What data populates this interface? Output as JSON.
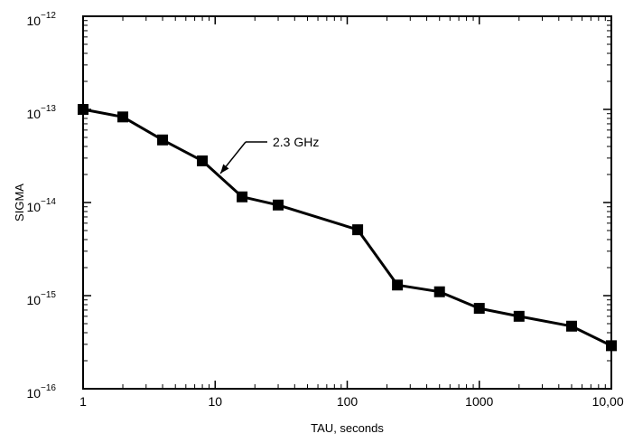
{
  "chart_data": {
    "type": "line",
    "title": "",
    "xlabel": "TAU, seconds",
    "ylabel": "SIGMA",
    "x_scale": "log",
    "y_scale": "log",
    "xlim": [
      1,
      10000
    ],
    "ylim": [
      1e-16,
      1e-12
    ],
    "x_tick_labels": [
      "1",
      "10",
      "100",
      "1000",
      "10,000"
    ],
    "y_tick_labels": [
      {
        "base": "10",
        "exp": "−12"
      },
      {
        "base": "10",
        "exp": "−13"
      },
      {
        "base": "10",
        "exp": "−14"
      },
      {
        "base": "10",
        "exp": "−15"
      },
      {
        "base": "10",
        "exp": "−16"
      }
    ],
    "grid": false,
    "series": [
      {
        "name": "2.3 GHz",
        "color": "#000000",
        "marker": "square",
        "x": [
          1,
          2,
          4,
          8,
          16,
          30,
          120,
          240,
          500,
          1000,
          2000,
          5000,
          10000
        ],
        "y": [
          1e-13,
          8.3e-14,
          4.7e-14,
          2.8e-14,
          1.15e-14,
          9.4e-15,
          5.1e-15,
          1.3e-15,
          1.1e-15,
          7.3e-16,
          6e-16,
          4.7e-16,
          2.9e-16
        ]
      }
    ],
    "annotations": [
      {
        "text": "2.3 GHz"
      }
    ]
  }
}
